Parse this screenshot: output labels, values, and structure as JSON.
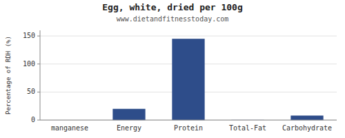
{
  "chart_data": {
    "type": "bar",
    "title": "Egg, white, dried per 100g",
    "subtitle": "www.dietandfitnesstoday.com",
    "ylabel": "Percentage of RDH (%)",
    "categories": [
      "manganese",
      "Energy",
      "Protein",
      "Total-Fat",
      "Carbohydrate"
    ],
    "values": [
      0.0,
      20.0,
      145.0,
      0.2,
      8.0
    ],
    "color": "#2e4d8a",
    "ylim": [
      0,
      160
    ],
    "yticks": [
      0,
      50,
      100,
      150
    ],
    "grid": true
  }
}
